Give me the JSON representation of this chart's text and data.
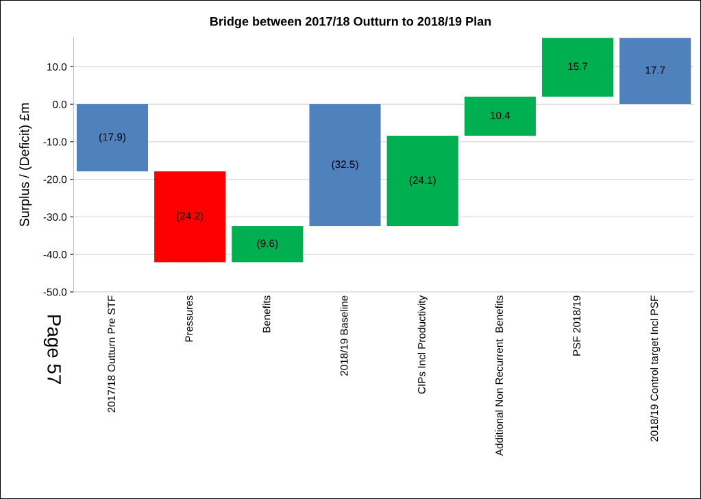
{
  "chart_data": {
    "type": "bar",
    "title": "Bridge between 2017/18 Outturn to 2018/19 Plan",
    "ylabel": "Surplus / (Deficit) £m",
    "categories": [
      "2017/18 Outturn Pre STF",
      "Pressures",
      "Benefits",
      "2018/19 Baseline",
      "CIPs Incl Productivity",
      "Additional Non Recurrent  Benefits",
      "PSF 2018/19",
      "2018/19 Control target Incl PSF"
    ],
    "values": [
      -17.9,
      -24.2,
      9.6,
      -32.5,
      24.1,
      10.4,
      15.7,
      17.7
    ],
    "base": [
      0,
      -17.9,
      -42.1,
      0,
      -32.5,
      -8.4,
      2.0,
      0
    ],
    "colors": [
      "#4f81bd",
      "#ff0000",
      "#00b050",
      "#4f81bd",
      "#00b050",
      "#00b050",
      "#00b050",
      "#4f81bd"
    ],
    "value_labels": [
      "(17.9)",
      "(24.2)",
      "(9.6)",
      "(32.5)",
      "(24.1)",
      "10.4",
      "15.7",
      "17.7"
    ],
    "ylim": [
      -50,
      17.8
    ],
    "yticks": [
      {
        "value": -50,
        "label": "-50.0"
      },
      {
        "value": -40,
        "label": "-40.0"
      },
      {
        "value": -30,
        "label": "-30.0"
      },
      {
        "value": -20,
        "label": "-20.0"
      },
      {
        "value": -10,
        "label": "-10.0"
      },
      {
        "value": 0,
        "label": "0.0"
      },
      {
        "value": 10,
        "label": "10.0"
      }
    ],
    "grid": "y",
    "annotations": [
      "Page 57"
    ]
  }
}
